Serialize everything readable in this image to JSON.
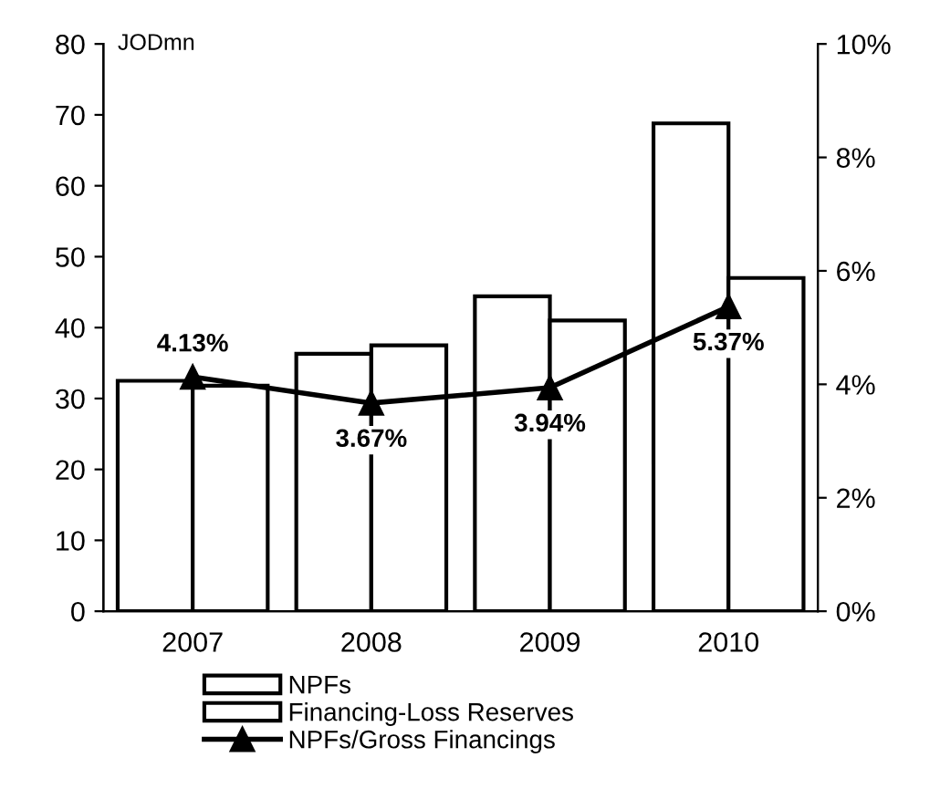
{
  "chart_data": {
    "type": "bar",
    "ylabel": "JODmn",
    "categories": [
      "2007",
      "2008",
      "2009",
      "2010"
    ],
    "series": [
      {
        "name": "NPFs",
        "color": "#ffffff",
        "values": [
          32.5,
          36.3,
          44.4,
          68.8
        ]
      },
      {
        "name": "Financing-Loss Reserves",
        "color": "#ffffff",
        "values": [
          31.8,
          37.5,
          41,
          47
        ]
      },
      {
        "name": "NPFs/Gross Financings",
        "type": "line",
        "axis": "y2",
        "color": "#000000",
        "marker": "triangle",
        "values": [
          4.13,
          3.67,
          3.94,
          5.37
        ],
        "value_labels": [
          "4.13%",
          "3.67%",
          "3.94%",
          "5.37%"
        ]
      }
    ],
    "ylim": [
      0,
      80
    ],
    "yticks": [
      0,
      10,
      20,
      30,
      40,
      50,
      60,
      70,
      80
    ],
    "y2lim": [
      0,
      10
    ],
    "y2ticks": [
      {
        "value": 0,
        "label": "0%"
      },
      {
        "value": 2,
        "label": "2%"
      },
      {
        "value": 4,
        "label": "4%"
      },
      {
        "value": 6,
        "label": "6%"
      },
      {
        "value": 8,
        "label": "8%"
      },
      {
        "value": 10,
        "label": "10%"
      }
    ],
    "grid": false,
    "legend": "bottom"
  }
}
